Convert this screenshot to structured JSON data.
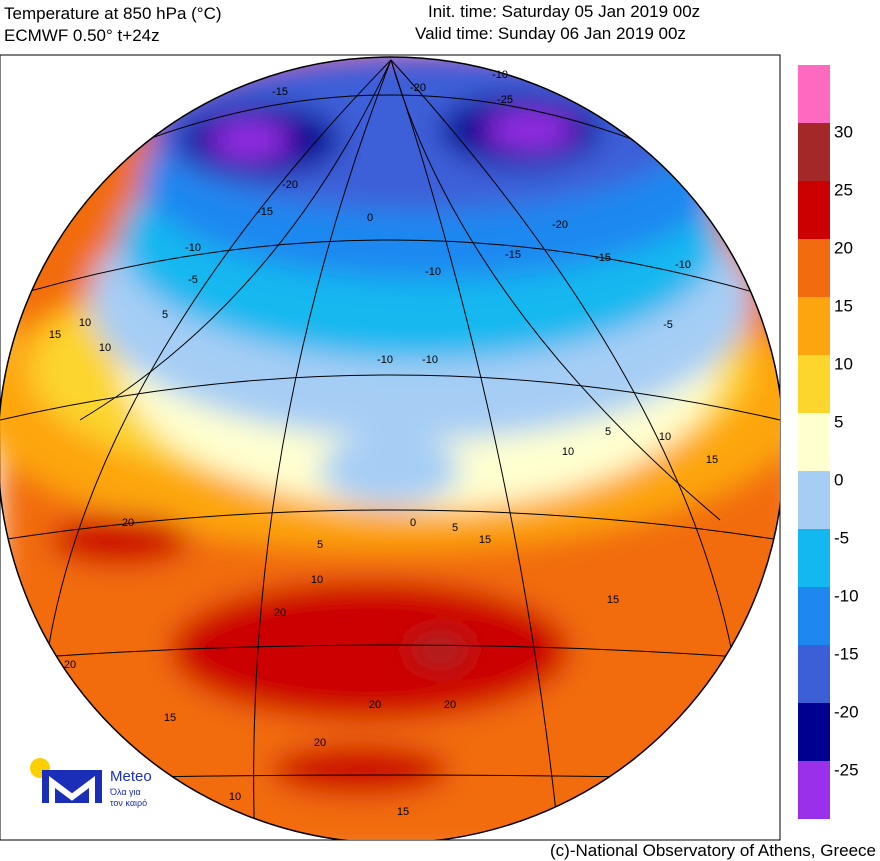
{
  "header": {
    "title": "Temperature at 850 hPa (°C)",
    "model": "ECMWF 0.50° t+24z",
    "init_time": "Init. time: Saturday 05 Jan 2019 00z",
    "valid_time": "Valid time: Sunday 06 Jan 2019 00z"
  },
  "colorbar": {
    "colors": [
      "#ff69c0",
      "#a52828",
      "#cc0000",
      "#f26c0f",
      "#fda50f",
      "#fcd52d",
      "#ffffd0",
      "#a6cef5",
      "#14b8f0",
      "#1e88f0",
      "#3c5fd8",
      "#000090",
      "#9a30ea"
    ],
    "ticks": [
      30,
      25,
      20,
      15,
      10,
      5,
      0,
      -5,
      -10,
      -15,
      -20,
      -25
    ]
  },
  "map": {
    "contour_labels": [
      -10,
      -15,
      -20,
      -25,
      -20,
      -15,
      -10,
      -5,
      0,
      -10,
      -15,
      -20,
      -15,
      -10,
      -5,
      -10,
      -10,
      5,
      10,
      15,
      10,
      5,
      10,
      15,
      10,
      5,
      0,
      5,
      10,
      15,
      15,
      20,
      20,
      20,
      20,
      20,
      15,
      10,
      15,
      20
    ]
  },
  "logo": {
    "name": "Meteo",
    "tagline_1": "Όλα για",
    "tagline_2": "τον καιρό"
  },
  "footer": {
    "credit": "(c)-National Observatory of Athens, Greece"
  }
}
